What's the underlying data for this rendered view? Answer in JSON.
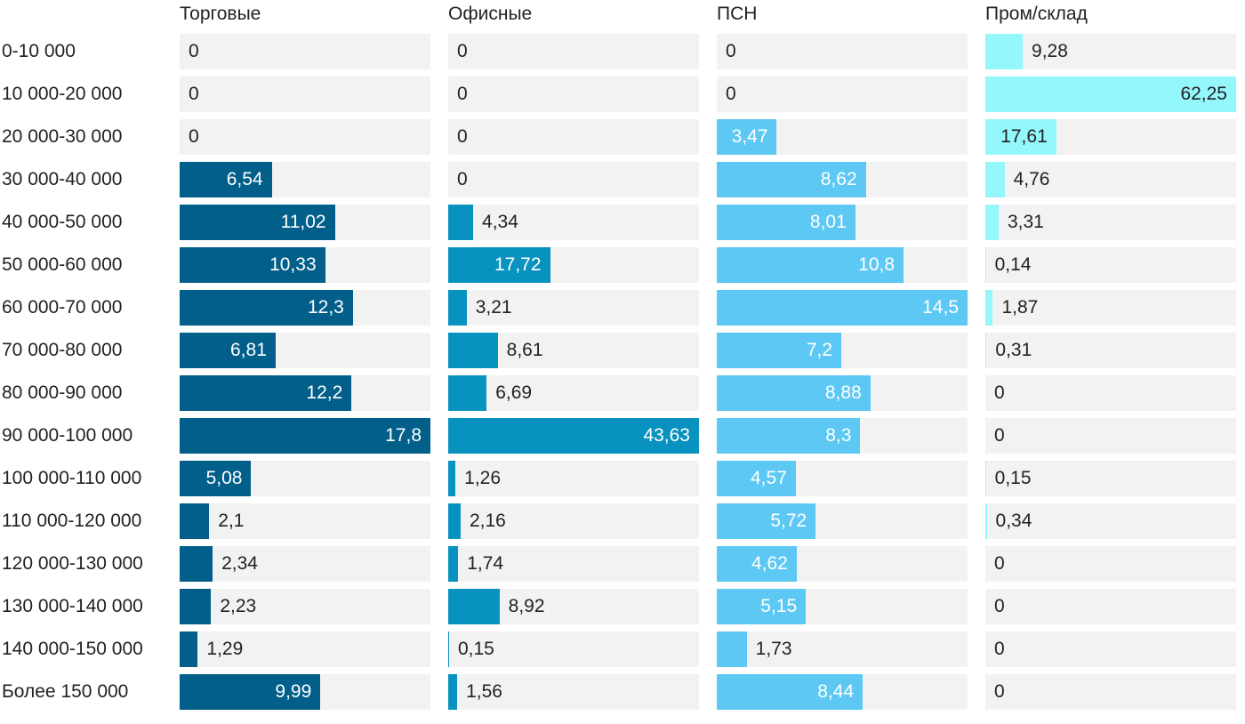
{
  "chart_data": {
    "type": "bar",
    "orientation": "horizontal",
    "layout": "small-multiples",
    "categories": [
      "0-10 000",
      "10 000-20 000",
      "20 000-30 000",
      "30 000-40 000",
      "40 000-50 000",
      "50 000-60 000",
      "60 000-70 000",
      "70 000-80 000",
      "80 000-90 000",
      "90 000-100 000",
      "100 000-110 000",
      "110 000-120 000",
      "120 000-130 000",
      "130 000-140 000",
      "140 000-150 000",
      "Более 150 000"
    ],
    "series": [
      {
        "name": "Торговые",
        "color": "#015f8a",
        "max": 17.8,
        "values": [
          0,
          0,
          0,
          6.54,
          11.02,
          10.33,
          12.3,
          6.81,
          12.2,
          17.8,
          5.08,
          2.1,
          2.34,
          2.23,
          1.29,
          9.99
        ],
        "labels": [
          "0",
          "0",
          "0",
          "6,54",
          "11,02",
          "10,33",
          "12,3",
          "6,81",
          "12,2",
          "17,8",
          "5,08",
          "2,1",
          "2,34",
          "2,23",
          "1,29",
          "9,99"
        ]
      },
      {
        "name": "Офисные",
        "color": "#0892bf",
        "max": 43.63,
        "values": [
          0,
          0,
          0,
          0,
          4.34,
          17.72,
          3.21,
          8.61,
          6.69,
          43.63,
          1.26,
          2.16,
          1.74,
          8.92,
          0.15,
          1.56
        ],
        "labels": [
          "0",
          "0",
          "0",
          "0",
          "4,34",
          "17,72",
          "3,21",
          "8,61",
          "6,69",
          "43,63",
          "1,26",
          "2,16",
          "1,74",
          "8,92",
          "0,15",
          "1,56"
        ]
      },
      {
        "name": "ПСН",
        "color": "#5dc8f4",
        "max": 14.5,
        "values": [
          0,
          0,
          3.47,
          8.62,
          8.01,
          10.8,
          14.5,
          7.2,
          8.88,
          8.3,
          4.57,
          5.72,
          4.62,
          5.15,
          1.73,
          8.44
        ],
        "labels": [
          "0",
          "0",
          "3,47",
          "8,62",
          "8,01",
          "10,8",
          "14,5",
          "7,2",
          "8,88",
          "8,3",
          "4,57",
          "5,72",
          "4,62",
          "5,15",
          "1,73",
          "8,44"
        ]
      },
      {
        "name": "Пром/склад",
        "color": "#94f7fc",
        "max": 62.25,
        "values": [
          9.28,
          62.25,
          17.61,
          4.76,
          3.31,
          0.14,
          1.87,
          0.31,
          0,
          0,
          0.15,
          0.34,
          0,
          0,
          0,
          0
        ],
        "labels": [
          "9,28",
          "62,25",
          "17,61",
          "4,76",
          "3,31",
          "0,14",
          "1,87",
          "0,31",
          "0",
          "0",
          "0,15",
          "0,34",
          "0",
          "0",
          "0",
          "0"
        ]
      }
    ],
    "title": "",
    "xlabel": "",
    "ylabel": "",
    "grid": false,
    "legend": "none"
  }
}
